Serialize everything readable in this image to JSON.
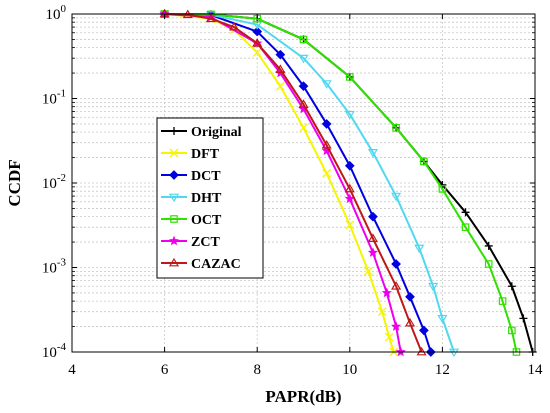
{
  "chart_data": {
    "type": "line",
    "title": "",
    "xlabel": "PAPR(dB)",
    "ylabel": "CCDF",
    "xlim": [
      4,
      14
    ],
    "ylim": [
      0.0001,
      1
    ],
    "yscale": "log",
    "grid": true,
    "legend_position": "center",
    "x_ticks": [
      "4",
      "6",
      "8",
      "10",
      "12",
      "14"
    ],
    "x_tick_values": [
      4,
      6,
      8,
      10,
      12,
      14
    ],
    "y_ticks": [
      {
        "value": 0.0001,
        "base": "10",
        "exp": "-4"
      },
      {
        "value": 0.001,
        "base": "10",
        "exp": "-3"
      },
      {
        "value": 0.01,
        "base": "10",
        "exp": "-2"
      },
      {
        "value": 0.1,
        "base": "10",
        "exp": "-1"
      },
      {
        "value": 1,
        "base": "10",
        "exp": "0"
      }
    ],
    "series": [
      {
        "name": "Original",
        "color": "#000000",
        "marker": "plus",
        "x": [
          6.0,
          7.0,
          8.0,
          9.0,
          10.0,
          11.0,
          11.6,
          12.0,
          12.5,
          13.0,
          13.5,
          13.75,
          13.95
        ],
        "y": [
          1.0,
          0.99,
          0.88,
          0.5,
          0.18,
          0.045,
          0.018,
          0.0095,
          0.0045,
          0.0018,
          0.0006,
          0.00025,
          0.0001
        ]
      },
      {
        "name": "DFT",
        "color": "#f5f500",
        "marker": "x",
        "x": [
          6.0,
          7.0,
          7.5,
          8.0,
          8.5,
          9.0,
          9.5,
          10.0,
          10.4,
          10.7,
          10.85,
          10.95
        ],
        "y": [
          1.0,
          0.88,
          0.65,
          0.35,
          0.14,
          0.045,
          0.013,
          0.0032,
          0.0009,
          0.0003,
          0.00015,
          0.0001
        ]
      },
      {
        "name": "DCT",
        "color": "#0000e0",
        "marker": "diamond",
        "x": [
          6.0,
          7.0,
          8.0,
          8.5,
          9.0,
          9.5,
          10.0,
          10.5,
          11.0,
          11.3,
          11.6,
          11.75
        ],
        "y": [
          1.0,
          0.97,
          0.62,
          0.33,
          0.14,
          0.05,
          0.016,
          0.004,
          0.0011,
          0.00045,
          0.00018,
          0.0001
        ]
      },
      {
        "name": "DHT",
        "color": "#50d8f0",
        "marker": "triangle-down",
        "x": [
          6.0,
          7.0,
          8.0,
          9.0,
          9.5,
          10.0,
          10.5,
          11.0,
          11.5,
          11.8,
          12.0,
          12.25
        ],
        "y": [
          1.0,
          0.98,
          0.75,
          0.3,
          0.15,
          0.065,
          0.023,
          0.007,
          0.0017,
          0.0006,
          0.00025,
          0.0001
        ]
      },
      {
        "name": "OCT",
        "color": "#30e000",
        "marker": "square",
        "x": [
          6.0,
          7.0,
          8.0,
          9.0,
          10.0,
          11.0,
          11.6,
          12.0,
          12.5,
          13.0,
          13.3,
          13.5,
          13.6
        ],
        "y": [
          1.0,
          0.99,
          0.88,
          0.5,
          0.18,
          0.045,
          0.018,
          0.0085,
          0.003,
          0.0011,
          0.0004,
          0.00018,
          0.0001
        ]
      },
      {
        "name": "ZCT",
        "color": "#ee00ee",
        "marker": "star",
        "x": [
          6.0,
          7.0,
          8.0,
          8.5,
          9.0,
          9.5,
          10.0,
          10.5,
          10.8,
          11.0,
          11.1
        ],
        "y": [
          1.0,
          0.92,
          0.45,
          0.2,
          0.075,
          0.024,
          0.0065,
          0.0015,
          0.0005,
          0.0002,
          0.0001
        ]
      },
      {
        "name": "CAZAC",
        "color": "#c01818",
        "marker": "triangle-up",
        "x": [
          6.0,
          6.5,
          7.0,
          7.5,
          8.0,
          8.5,
          9.0,
          9.5,
          10.0,
          10.5,
          11.0,
          11.3,
          11.55
        ],
        "y": [
          1.0,
          0.98,
          0.88,
          0.7,
          0.45,
          0.22,
          0.085,
          0.028,
          0.0085,
          0.0022,
          0.0006,
          0.00022,
          0.0001
        ]
      }
    ]
  }
}
